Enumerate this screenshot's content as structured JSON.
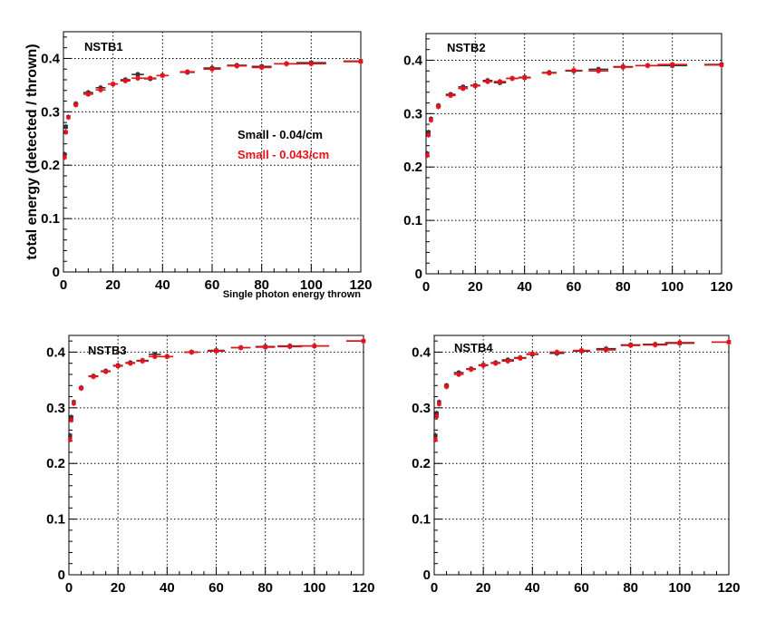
{
  "chart_data": [
    {
      "type": "scatter",
      "title": "NSTB1",
      "ylabel": "total energy (detected / thrown)",
      "xlabel": "Single photon energy thrown",
      "xlim": [
        0,
        120
      ],
      "ylim": [
        0,
        0.45
      ],
      "xticks": [
        "0",
        "20",
        "40",
        "60",
        "80",
        "100",
        "120"
      ],
      "yticks": [
        "0",
        "0.1",
        "0.2",
        "0.3",
        "0.4"
      ],
      "grid": true,
      "legend": [
        {
          "text": "Small - 0.04/cm",
          "color": "#000000"
        },
        {
          "text": "Small - 0.043/cm",
          "color": "#e8101a"
        }
      ],
      "series": [
        {
          "color": "#333333",
          "x": [
            0.5,
            1,
            2,
            5,
            10,
            15,
            20,
            25,
            30,
            35,
            40,
            50,
            60,
            70,
            80,
            90,
            100,
            120
          ],
          "y": [
            0.22,
            0.272,
            0.29,
            0.315,
            0.336,
            0.345,
            0.352,
            0.36,
            0.37,
            0.362,
            0.368,
            0.374,
            0.382,
            0.387,
            0.385,
            0.39,
            0.392,
            0.395
          ],
          "xerr": [
            0.5,
            0.5,
            0.5,
            1,
            2,
            2,
            2,
            2,
            2.5,
            2.5,
            2.5,
            3,
            3.5,
            4,
            4,
            5,
            6,
            7
          ]
        },
        {
          "color": "#e8101a",
          "x": [
            0.5,
            1,
            2,
            5,
            10,
            15,
            20,
            25,
            30,
            35,
            40,
            50,
            60,
            70,
            80,
            90,
            100,
            120
          ],
          "y": [
            0.215,
            0.262,
            0.29,
            0.313,
            0.333,
            0.341,
            0.352,
            0.358,
            0.363,
            0.363,
            0.368,
            0.375,
            0.38,
            0.386,
            0.383,
            0.39,
            0.39,
            0.394
          ],
          "xerr": [
            0.5,
            0.5,
            0.5,
            1,
            2,
            2,
            2,
            2,
            2.5,
            2.5,
            2.5,
            3,
            3.5,
            4,
            4,
            5,
            6,
            7
          ]
        }
      ]
    },
    {
      "type": "scatter",
      "title": "NSTB2",
      "xlim": [
        0,
        120
      ],
      "ylim": [
        0,
        0.45
      ],
      "xticks": [
        "0",
        "20",
        "40",
        "60",
        "80",
        "100",
        "120"
      ],
      "yticks": [
        "0",
        "0.1",
        "0.2",
        "0.3",
        "0.4"
      ],
      "grid": true,
      "series": [
        {
          "color": "#333333",
          "x": [
            0.5,
            1,
            2,
            5,
            10,
            15,
            20,
            25,
            30,
            35,
            40,
            50,
            60,
            70,
            80,
            90,
            100,
            120
          ],
          "y": [
            0.225,
            0.265,
            0.29,
            0.315,
            0.336,
            0.35,
            0.353,
            0.362,
            0.358,
            0.366,
            0.368,
            0.377,
            0.38,
            0.383,
            0.388,
            0.39,
            0.39,
            0.392
          ],
          "xerr": [
            0.5,
            0.5,
            0.5,
            1,
            2,
            2,
            2,
            2,
            2.5,
            2.5,
            2.5,
            3,
            3.5,
            4,
            4,
            5,
            6,
            7
          ]
        },
        {
          "color": "#e8101a",
          "x": [
            0.5,
            1,
            2,
            5,
            10,
            15,
            20,
            25,
            30,
            35,
            40,
            50,
            60,
            70,
            80,
            90,
            100,
            120
          ],
          "y": [
            0.222,
            0.26,
            0.288,
            0.313,
            0.334,
            0.347,
            0.352,
            0.36,
            0.36,
            0.366,
            0.367,
            0.376,
            0.381,
            0.38,
            0.387,
            0.39,
            0.392,
            0.391
          ],
          "xerr": [
            0.5,
            0.5,
            0.5,
            1,
            2,
            2,
            2,
            2,
            2.5,
            2.5,
            2.5,
            3,
            3.5,
            4,
            4,
            5,
            6,
            7
          ]
        }
      ]
    },
    {
      "type": "scatter",
      "title": "NSTB3",
      "xlim": [
        0,
        120
      ],
      "ylim": [
        0,
        0.43
      ],
      "xticks": [
        "0",
        "20",
        "40",
        "60",
        "80",
        "100",
        "120"
      ],
      "yticks": [
        "0",
        "0.1",
        "0.2",
        "0.3",
        "0.4"
      ],
      "grid": true,
      "series": [
        {
          "color": "#333333",
          "x": [
            0.5,
            1,
            2,
            5,
            10,
            15,
            20,
            25,
            30,
            35,
            40,
            50,
            60,
            70,
            80,
            90,
            100,
            120
          ],
          "y": [
            0.25,
            0.283,
            0.31,
            0.336,
            0.357,
            0.366,
            0.376,
            0.381,
            0.385,
            0.396,
            0.392,
            0.4,
            0.403,
            0.408,
            0.41,
            0.411,
            0.411,
            0.42
          ],
          "xerr": [
            0.5,
            0.5,
            0.5,
            1,
            2,
            2,
            2,
            2,
            2.5,
            2.5,
            2.5,
            3,
            3.5,
            4,
            4,
            5,
            6,
            7
          ]
        },
        {
          "color": "#e8101a",
          "x": [
            0.5,
            1,
            2,
            5,
            10,
            15,
            20,
            25,
            30,
            35,
            40,
            50,
            60,
            70,
            80,
            90,
            100,
            120
          ],
          "y": [
            0.243,
            0.278,
            0.308,
            0.335,
            0.356,
            0.365,
            0.375,
            0.38,
            0.384,
            0.392,
            0.392,
            0.4,
            0.402,
            0.408,
            0.409,
            0.41,
            0.411,
            0.42
          ],
          "xerr": [
            0.5,
            0.5,
            0.5,
            1,
            2,
            2,
            2,
            2,
            2.5,
            2.5,
            2.5,
            3,
            3.5,
            4,
            4,
            5,
            6,
            7
          ]
        }
      ]
    },
    {
      "type": "scatter",
      "title": "NSTB4",
      "xlim": [
        0,
        120
      ],
      "ylim": [
        0,
        0.43
      ],
      "xticks": [
        "0",
        "20",
        "40",
        "60",
        "80",
        "100",
        "120"
      ],
      "yticks": [
        "0",
        "0.1",
        "0.2",
        "0.3",
        "0.4"
      ],
      "grid": true,
      "series": [
        {
          "color": "#333333",
          "x": [
            0.5,
            1,
            2,
            5,
            10,
            15,
            20,
            25,
            30,
            35,
            40,
            50,
            60,
            70,
            80,
            90,
            100,
            120
          ],
          "y": [
            0.25,
            0.29,
            0.31,
            0.34,
            0.363,
            0.37,
            0.377,
            0.381,
            0.386,
            0.39,
            0.396,
            0.398,
            0.402,
            0.406,
            0.413,
            0.414,
            0.416,
            0.418
          ],
          "xerr": [
            0.5,
            0.5,
            0.5,
            1,
            2,
            2,
            2,
            2,
            2.5,
            2.5,
            2.5,
            3,
            3.5,
            4,
            4,
            5,
            6,
            7
          ]
        },
        {
          "color": "#e8101a",
          "x": [
            0.5,
            1,
            2,
            5,
            10,
            15,
            20,
            25,
            30,
            35,
            40,
            50,
            60,
            70,
            80,
            90,
            100,
            120
          ],
          "y": [
            0.243,
            0.285,
            0.307,
            0.338,
            0.36,
            0.369,
            0.376,
            0.38,
            0.384,
            0.389,
            0.397,
            0.4,
            0.403,
            0.404,
            0.412,
            0.413,
            0.417,
            0.418
          ],
          "xerr": [
            0.5,
            0.5,
            0.5,
            1,
            2,
            2,
            2,
            2,
            2.5,
            2.5,
            2.5,
            3,
            3.5,
            4,
            4,
            5,
            6,
            7
          ]
        }
      ]
    }
  ]
}
